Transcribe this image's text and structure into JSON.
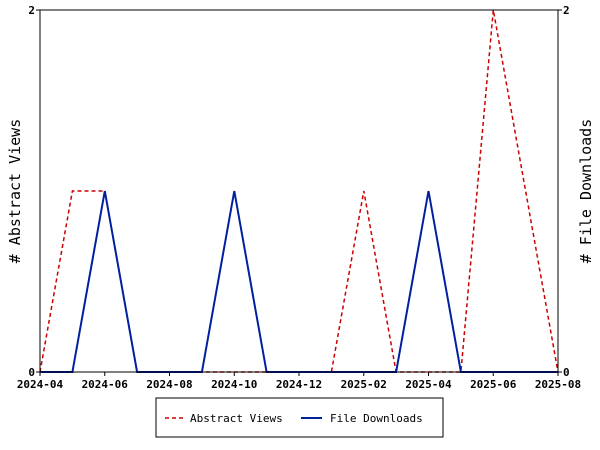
{
  "chart_data": {
    "type": "line",
    "title": "",
    "xlabel": "",
    "ylabel": "# Abstract Views",
    "y2label": "# File Downloads",
    "x_ticks": [
      "2024-04",
      "2024-06",
      "2024-08",
      "2024-10",
      "2024-12",
      "2025-02",
      "2025-04",
      "2025-06",
      "2025-08"
    ],
    "y_ticks": [
      "0",
      "2"
    ],
    "y2_ticks": [
      "0",
      "2"
    ],
    "ylim": [
      0,
      2
    ],
    "y2lim": [
      0,
      2
    ],
    "x": [
      "2024-04",
      "2024-05",
      "2024-06",
      "2024-07",
      "2024-08",
      "2024-09",
      "2024-10",
      "2024-11",
      "2024-12",
      "2025-01",
      "2025-02",
      "2025-03",
      "2025-04",
      "2025-05",
      "2025-06",
      "2025-07",
      "2025-08"
    ],
    "series": [
      {
        "name": "Abstract Views",
        "axis": "left",
        "color": "#cc0000",
        "style": "dashed",
        "values": [
          0,
          1,
          1,
          0,
          0,
          0,
          0,
          0,
          0,
          0,
          1,
          0,
          0,
          0,
          2,
          1,
          0
        ]
      },
      {
        "name": "File Downloads",
        "axis": "right",
        "color": "#0020a0",
        "style": "solid",
        "values": [
          0,
          0,
          1,
          0,
          0,
          0,
          1,
          0,
          0,
          0,
          0,
          0,
          1,
          0,
          0,
          0,
          0
        ]
      }
    ],
    "grid": false,
    "legend_position": "bottom-center"
  }
}
